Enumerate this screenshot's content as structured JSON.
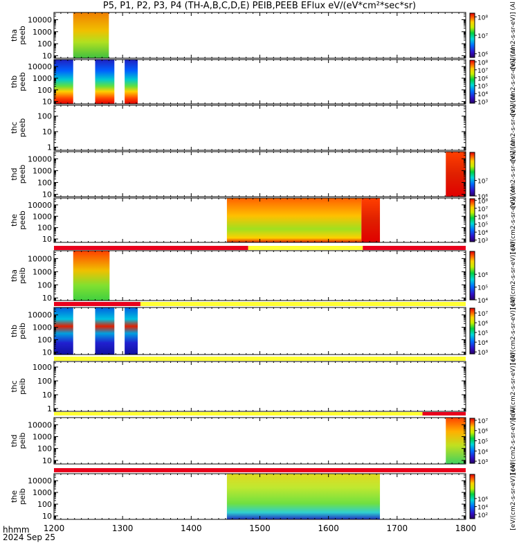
{
  "title": "P5, P1, P2, P3, P4 (TH-A,B,C,D,E) PEIB,PEEB EFlux eV/(eV*cm²*sec*sr)",
  "footer": {
    "hhmm": "hhmm",
    "date": "2024 Sep 25"
  },
  "colors": {
    "red": "#e8001c",
    "yellow": "#ffff33"
  },
  "chart_data": {
    "type": "heatmap",
    "x_range": [
      1200,
      1800
    ],
    "x_ticks": [
      "1200",
      "1300",
      "1400",
      "1500",
      "1600",
      "1700",
      "1800"
    ],
    "x_tick_values": [
      1200,
      1300,
      1400,
      1500,
      1600,
      1700,
      1800
    ],
    "panels": [
      {
        "label": [
          "tha",
          "peeb"
        ],
        "yticks": [
          "10",
          "100",
          "1000",
          "10000"
        ],
        "ylog": [
          0.8,
          4.6
        ],
        "cbar_label": "[eV/(cm2-s-sr-eV)] (Al",
        "cbar_ticks": [
          "10⁶",
          "10⁷",
          "10⁸"
        ],
        "cbar_log": [
          5.8,
          8.2
        ],
        "blocks": [
          {
            "x0": 1228,
            "x1": 1280,
            "style": "hot"
          }
        ],
        "flag": []
      },
      {
        "label": [
          "thb",
          "peeb"
        ],
        "yticks": [
          "10",
          "100",
          "1000",
          "10000"
        ],
        "ylog": [
          0.8,
          4.6
        ],
        "cbar_label": "[eV/(cm2-s-sr-eV)] (Al",
        "cbar_ticks": [
          "10³",
          "10⁴",
          "10⁵",
          "10⁶",
          "10⁷",
          "10⁸"
        ],
        "cbar_log": [
          2.8,
          8.2
        ],
        "blocks": [
          {
            "x0": 1200,
            "x1": 1228,
            "style": "rainbow"
          },
          {
            "x0": 1260,
            "x1": 1288,
            "style": "rainbow"
          },
          {
            "x0": 1303,
            "x1": 1322,
            "style": "rainbow"
          }
        ],
        "flag": []
      },
      {
        "label": [
          "thc",
          "peeb"
        ],
        "yticks": [
          "1",
          "10",
          "100"
        ],
        "ylog": [
          -0.2,
          2.7
        ],
        "cbar_label": "[eV/(cm2-s-sr-eV)] (Al",
        "cbar_ticks": [],
        "cbar_log": [
          0,
          1
        ],
        "blocks": [],
        "flag": []
      },
      {
        "label": [
          "thd",
          "peeb"
        ],
        "yticks": [
          "10",
          "100",
          "1000",
          "10000"
        ],
        "ylog": [
          0.8,
          4.6
        ],
        "cbar_label": "[eV/(cm2-s-sr-eV)] (Al",
        "cbar_ticks": [
          "10⁶",
          "10⁷"
        ],
        "cbar_log": [
          5.0,
          7.8
        ],
        "blocks": [
          {
            "x0": 1771,
            "x1": 1800,
            "style": "red"
          }
        ],
        "flag": []
      },
      {
        "label": [
          "the",
          "peeb"
        ],
        "yticks": [
          "10",
          "100",
          "1000",
          "10000"
        ],
        "ylog": [
          0.7,
          4.6
        ],
        "cbar_label": "[eV/(cm2-s-sr-eV)] (Al",
        "cbar_ticks": [
          "10³",
          "10⁴",
          "10⁵",
          "10⁶",
          "10⁷",
          "10⁸"
        ],
        "cbar_log": [
          2.8,
          8.2
        ],
        "blocks": [
          {
            "x0": 1452,
            "x1": 1648,
            "style": "mixed"
          },
          {
            "x0": 1648,
            "x1": 1675,
            "style": "red"
          }
        ],
        "flag": [
          {
            "x0": 1200,
            "x1": 1483,
            "color": "red"
          },
          {
            "x0": 1483,
            "x1": 1650,
            "color": "yellow"
          },
          {
            "x0": 1650,
            "x1": 1800,
            "color": "red"
          }
        ]
      },
      {
        "label": [
          "tha",
          "peib"
        ],
        "yticks": [
          "10",
          "100",
          "1000",
          "10000"
        ],
        "ylog": [
          0.8,
          4.6
        ],
        "cbar_label": "[eV/(cm2-s-sr-eV)] (Al",
        "cbar_ticks": [
          "10⁴",
          "10⁵",
          "10⁶"
        ],
        "cbar_log": [
          3.0,
          6.8
        ],
        "blocks": [
          {
            "x0": 1228,
            "x1": 1281,
            "style": "ion"
          }
        ],
        "flag": [
          {
            "x0": 1200,
            "x1": 1326,
            "color": "red"
          },
          {
            "x0": 1326,
            "x1": 1800,
            "color": "yellow"
          }
        ]
      },
      {
        "label": [
          "thb",
          "peib"
        ],
        "yticks": [
          "10",
          "100",
          "1000",
          "10000"
        ],
        "ylog": [
          0.8,
          4.6
        ],
        "cbar_label": "[eV/(cm2-s-sr-eV)] (Al",
        "cbar_ticks": [
          "10³",
          "10⁴",
          "10⁵",
          "10⁶",
          "10⁷"
        ],
        "cbar_log": [
          2.8,
          7.5
        ],
        "blocks": [
          {
            "x0": 1200,
            "x1": 1228,
            "style": "ionb"
          },
          {
            "x0": 1260,
            "x1": 1288,
            "style": "ionb"
          },
          {
            "x0": 1303,
            "x1": 1322,
            "style": "ionb"
          }
        ],
        "flag": [
          {
            "x0": 1200,
            "x1": 1800,
            "color": "yellow"
          }
        ]
      },
      {
        "label": [
          "thc",
          "peib"
        ],
        "yticks": [
          "1",
          "10",
          "100",
          "1000"
        ],
        "ylog": [
          -0.2,
          3.4
        ],
        "cbar_label": "[eV/(cm2-s-sr-eV)] (Al",
        "cbar_ticks": [],
        "cbar_log": [
          0,
          1
        ],
        "blocks": [],
        "flag": [
          {
            "x0": 1200,
            "x1": 1737,
            "color": "yellow"
          },
          {
            "x0": 1737,
            "x1": 1800,
            "color": "red"
          }
        ]
      },
      {
        "label": [
          "thd",
          "peib"
        ],
        "yticks": [
          "10",
          "100",
          "1000",
          "10000"
        ],
        "ylog": [
          0.7,
          4.6
        ],
        "cbar_label": "[eV/(cm2-s-sr-eV)] (Al",
        "cbar_ticks": [
          "10³",
          "10⁴",
          "10⁵",
          "10⁶",
          "10⁷"
        ],
        "cbar_log": [
          2.8,
          7.2
        ],
        "blocks": [
          {
            "x0": 1771,
            "x1": 1800,
            "style": "ionhot"
          }
        ],
        "flag": [
          {
            "x0": 1200,
            "x1": 1800,
            "color": "red"
          }
        ]
      },
      {
        "label": [
          "the",
          "peib"
        ],
        "yticks": [
          "10",
          "100",
          "1000",
          "10000"
        ],
        "ylog": [
          0.7,
          4.6
        ],
        "cbar_label": "[eV/(cm2-s-sr-eV)] (Al",
        "cbar_ticks": [
          "10²",
          "10⁴",
          "10⁶"
        ],
        "cbar_log": [
          1.5,
          7.0
        ],
        "blocks": [
          {
            "x0": 1452,
            "x1": 1675,
            "style": "ione"
          }
        ],
        "flag": []
      }
    ]
  }
}
